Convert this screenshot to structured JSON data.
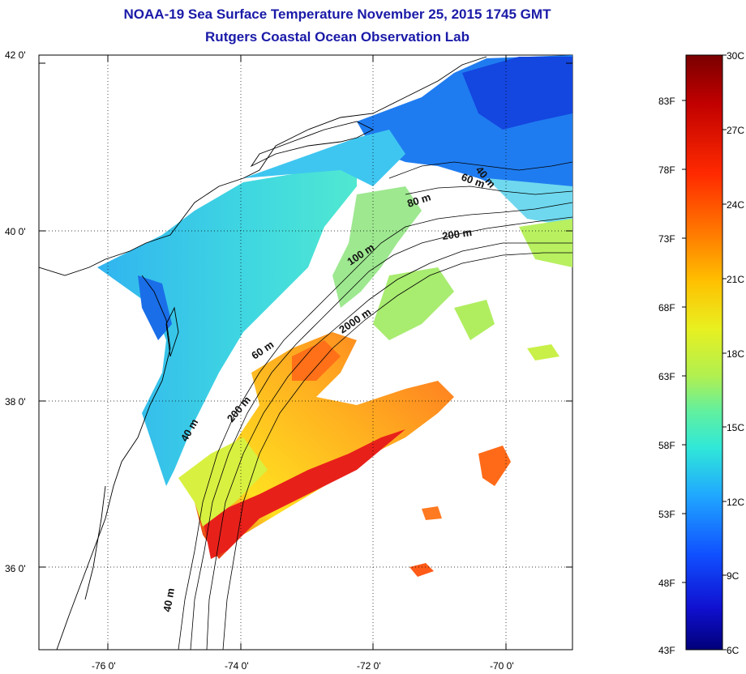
{
  "header": {
    "title": "NOAA-19 Sea Surface Temperature November 25, 2015 1745 GMT",
    "subtitle": "Rutgers Coastal Ocean Observation Lab"
  },
  "map": {
    "lat_ticks": [
      "42 0'",
      "40 0'",
      "38 0'",
      "36 0'"
    ],
    "lon_ticks": [
      "-76 0'",
      "-74 0'",
      "-72 0'",
      "-70 0'"
    ],
    "grid": true,
    "contour_labels": [
      "40 m",
      "60 m",
      "80 m",
      "200 m",
      "100 m",
      "2000 m",
      "60 m",
      "200 m",
      "40 m",
      "40 m"
    ]
  },
  "colorbar": {
    "celsius_labels": [
      "30C",
      "27C",
      "24C",
      "21C",
      "18C",
      "15C",
      "12C",
      "9C",
      "6C"
    ],
    "fahrenheit_labels": [
      "83F",
      "78F",
      "73F",
      "68F",
      "63F",
      "58F",
      "53F",
      "48F",
      "43F"
    ],
    "colors": [
      "#7a0000",
      "#c80000",
      "#ff3000",
      "#ff8000",
      "#ffd000",
      "#c8f040",
      "#60f0a0",
      "#20e0e0",
      "#20a0ff",
      "#1040ff",
      "#1010d0",
      "#00008a"
    ]
  }
}
